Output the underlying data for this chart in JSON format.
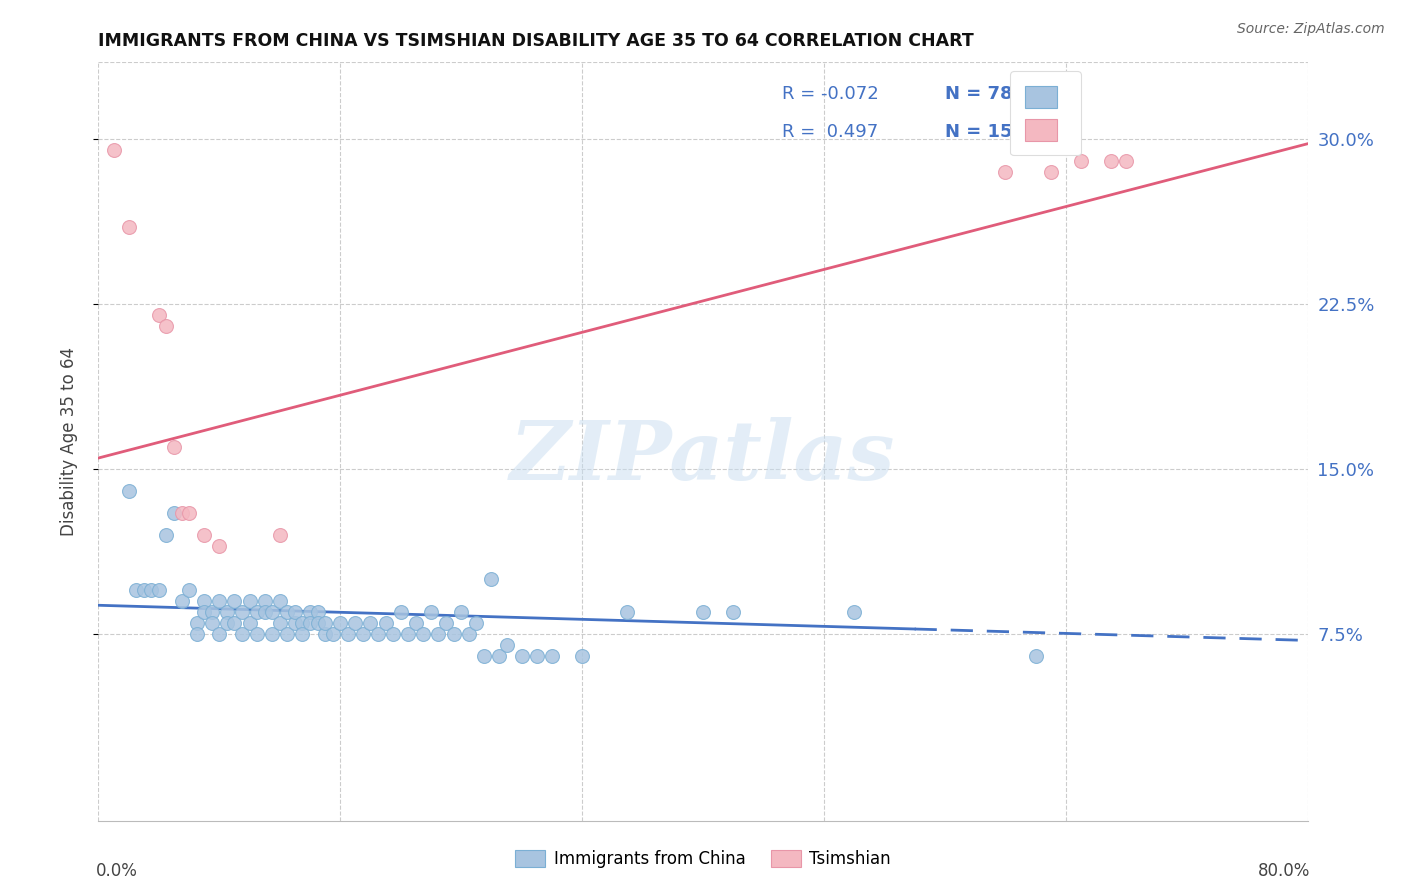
{
  "title": "IMMIGRANTS FROM CHINA VS TSIMSHIAN DISABILITY AGE 35 TO 64 CORRELATION CHART",
  "source": "Source: ZipAtlas.com",
  "ylabel": "Disability Age 35 to 64",
  "yticks": [
    "7.5%",
    "15.0%",
    "22.5%",
    "30.0%"
  ],
  "ytick_vals": [
    0.075,
    0.15,
    0.225,
    0.3
  ],
  "xlim": [
    0.0,
    0.8
  ],
  "ylim": [
    -0.01,
    0.335
  ],
  "legend_R1": "-0.072",
  "legend_N1": "78",
  "legend_R2": "0.497",
  "legend_N2": "15",
  "china_scatter_x": [
    0.02,
    0.025,
    0.03,
    0.035,
    0.04,
    0.045,
    0.05,
    0.055,
    0.06,
    0.065,
    0.065,
    0.07,
    0.07,
    0.075,
    0.075,
    0.08,
    0.08,
    0.085,
    0.085,
    0.09,
    0.09,
    0.095,
    0.095,
    0.1,
    0.1,
    0.105,
    0.105,
    0.11,
    0.11,
    0.115,
    0.115,
    0.12,
    0.12,
    0.125,
    0.125,
    0.13,
    0.13,
    0.135,
    0.135,
    0.14,
    0.14,
    0.145,
    0.145,
    0.15,
    0.15,
    0.155,
    0.16,
    0.165,
    0.17,
    0.175,
    0.18,
    0.185,
    0.19,
    0.195,
    0.2,
    0.205,
    0.21,
    0.215,
    0.22,
    0.225,
    0.23,
    0.235,
    0.24,
    0.245,
    0.25,
    0.255,
    0.26,
    0.265,
    0.27,
    0.28,
    0.29,
    0.3,
    0.32,
    0.35,
    0.4,
    0.42,
    0.5,
    0.62
  ],
  "china_scatter_y": [
    0.14,
    0.095,
    0.095,
    0.095,
    0.095,
    0.12,
    0.13,
    0.09,
    0.095,
    0.08,
    0.075,
    0.09,
    0.085,
    0.085,
    0.08,
    0.09,
    0.075,
    0.085,
    0.08,
    0.09,
    0.08,
    0.085,
    0.075,
    0.09,
    0.08,
    0.085,
    0.075,
    0.09,
    0.085,
    0.085,
    0.075,
    0.09,
    0.08,
    0.085,
    0.075,
    0.08,
    0.085,
    0.08,
    0.075,
    0.085,
    0.08,
    0.085,
    0.08,
    0.075,
    0.08,
    0.075,
    0.08,
    0.075,
    0.08,
    0.075,
    0.08,
    0.075,
    0.08,
    0.075,
    0.085,
    0.075,
    0.08,
    0.075,
    0.085,
    0.075,
    0.08,
    0.075,
    0.085,
    0.075,
    0.08,
    0.065,
    0.1,
    0.065,
    0.07,
    0.065,
    0.065,
    0.065,
    0.065,
    0.085,
    0.085,
    0.085,
    0.085,
    0.065
  ],
  "tsimshian_scatter_x": [
    0.01,
    0.02,
    0.04,
    0.045,
    0.05,
    0.055,
    0.06,
    0.07,
    0.08,
    0.12,
    0.6,
    0.63,
    0.65,
    0.67,
    0.68
  ],
  "tsimshian_scatter_y": [
    0.295,
    0.26,
    0.22,
    0.215,
    0.16,
    0.13,
    0.13,
    0.12,
    0.115,
    0.12,
    0.285,
    0.285,
    0.29,
    0.29,
    0.29
  ],
  "china_line_x0": 0.0,
  "china_line_x1": 0.8,
  "china_line_y0": 0.088,
  "china_line_y1": 0.072,
  "china_line_dash_start": 0.54,
  "china_line_color": "#4472c4",
  "tsimshian_line_x0": 0.0,
  "tsimshian_line_x1": 0.8,
  "tsimshian_line_y0": 0.155,
  "tsimshian_line_y1": 0.298,
  "tsimshian_line_color": "#e05c7a",
  "scatter_china_color": "#a8c4e0",
  "scatter_tsimshian_color": "#f4b8c1",
  "scatter_size": 100,
  "scatter_edge_china": "#7bafd4",
  "scatter_edge_tsi": "#e896a8",
  "watermark_text": "ZIPatlas",
  "grid_color": "#cccccc",
  "right_axis_color": "#4472c4",
  "legend_china_color": "#a8c4e0",
  "legend_tsi_color": "#f4b8c1",
  "legend_china_edge": "#7bafd4",
  "legend_tsi_edge": "#e896a8"
}
